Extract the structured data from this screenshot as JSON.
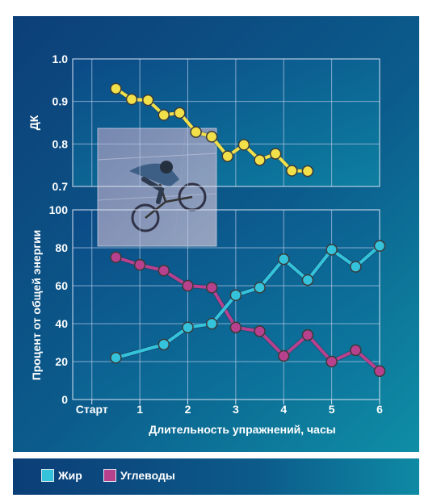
{
  "chart_data": [
    {
      "type": "line",
      "ylabel": "ДК",
      "ylim": [
        0.7,
        1.0
      ],
      "yticks": [
        "0.7",
        "0.8",
        "0.9",
        "1.0"
      ],
      "grid": true,
      "series": [
        {
          "color": "#f2e04a",
          "x": [
            0.5,
            0.83,
            1.17,
            1.5,
            1.83,
            2.17,
            2.5,
            2.83,
            3.17,
            3.5,
            3.83,
            4.17,
            4.5
          ],
          "values": [
            0.93,
            0.905,
            0.903,
            0.868,
            0.873,
            0.828,
            0.817,
            0.771,
            0.798,
            0.762,
            0.777,
            0.737,
            0.736
          ]
        }
      ]
    },
    {
      "type": "line",
      "ylabel": "Процент от общей энергии",
      "xlabel": "Длительность упражнений, часы",
      "xticks": [
        "Старт",
        "1",
        "2",
        "3",
        "4",
        "5",
        "6"
      ],
      "xlim": [
        -0.4,
        6
      ],
      "ylim": [
        0,
        100
      ],
      "yticks": [
        "0",
        "20",
        "40",
        "60",
        "80",
        "100"
      ],
      "grid": true,
      "legend_position": "bottom",
      "series": [
        {
          "name": "Жир",
          "color": "#35c3dc",
          "x": [
            0.5,
            1.5,
            2.0,
            2.5,
            3.0,
            3.5,
            4.0,
            4.5,
            5.0,
            5.5,
            6.0
          ],
          "values": [
            22,
            29,
            38,
            40,
            55,
            59,
            74,
            63,
            79,
            70,
            81
          ]
        },
        {
          "name": "Углеводы",
          "color": "#b8418e",
          "x": [
            0.5,
            1.0,
            1.5,
            2.0,
            2.5,
            3.0,
            3.5,
            4.0,
            4.5,
            5.0,
            5.5,
            6.0
          ],
          "values": [
            75,
            71,
            68,
            60,
            59,
            38,
            36,
            23,
            34,
            20,
            26,
            15
          ]
        }
      ]
    }
  ]
}
